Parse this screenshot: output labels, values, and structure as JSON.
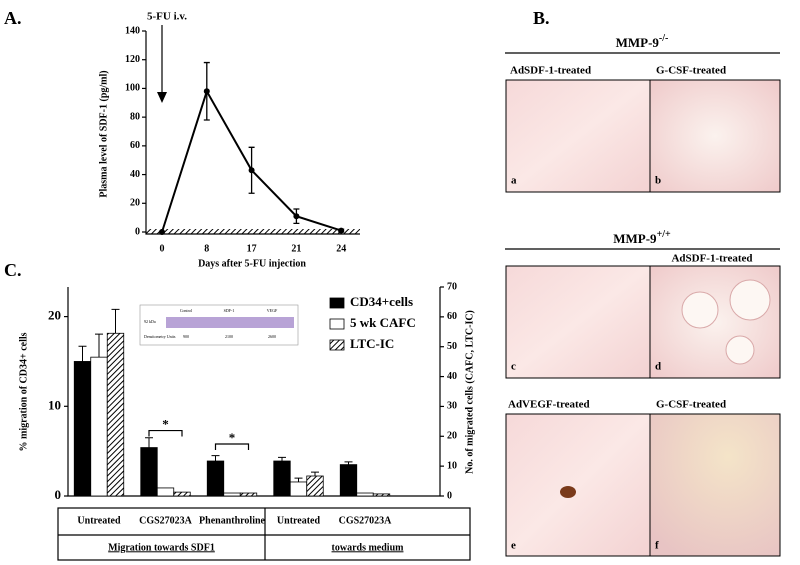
{
  "chart_data": [
    {
      "type": "line",
      "label": "A.",
      "annotation": "5-FU i.v.",
      "ylabel": "Plasma level of SDF-1 (pg/ml)",
      "xlabel": "Days after 5-FU injection",
      "categories": [
        "0",
        "8",
        "17",
        "21",
        "24"
      ],
      "values": [
        0,
        98,
        43,
        11,
        1
      ],
      "errors": [
        0,
        20,
        16,
        5,
        1
      ],
      "color": "#000000",
      "ylim": [
        0,
        140
      ],
      "yticks": [
        0,
        20,
        40,
        60,
        80,
        100,
        120,
        140
      ]
    },
    {
      "type": "bar",
      "label": "C.",
      "ylabel": "% migration of CD34+ cells",
      "y2label": "No. of migrated cells (CAFC, LTC-IC)",
      "categories": [
        "Untreated",
        "CGS27023A",
        "Phenanthroline",
        "Untreated",
        "CGS27023A"
      ],
      "groups": [
        "Migration towards SDF1",
        "towards medium"
      ],
      "series": [
        {
          "name": "CD34+cells",
          "color": "#000000",
          "values": [
            15.0,
            5.4,
            3.9,
            3.9,
            3.5
          ],
          "errors": [
            1.7,
            1.1,
            0.6,
            0.4,
            0.3
          ]
        },
        {
          "name": "5 wk CAFC",
          "color": "#ffffff",
          "axis": "y2",
          "values": [
            46.5,
            2.7,
            1,
            4.7,
            1
          ],
          "errors": [
            7.7,
            null,
            null,
            1.3,
            null
          ]
        },
        {
          "name": "LTC-IC",
          "color": "#ffffff",
          "hatch": true,
          "axis": "y2",
          "values": [
            54.5,
            1.3,
            1,
            6.7,
            0.7
          ],
          "errors": [
            8,
            null,
            null,
            1.3,
            null
          ]
        }
      ],
      "annotations": [
        "*",
        "*"
      ],
      "inset": {
        "columns": [
          "Control",
          "SDF-1",
          "VEGF"
        ],
        "row_label": "92 kDa",
        "densitometry_label": "Densitometry Units",
        "densitometry": [
          900,
          2100,
          2600
        ]
      },
      "ylim": [
        0,
        23.3
      ],
      "yticks": [
        0,
        10,
        20
      ],
      "y2lim": [
        0,
        70
      ],
      "y2ticks": [
        0,
        10,
        20,
        30,
        40,
        50,
        60,
        70
      ]
    }
  ],
  "panel_b": {
    "label": "B.",
    "knockout": {
      "title": "MMP-9",
      "sup": "-/-",
      "labels": [
        "AdSDF-1-treated",
        "G-CSF-treated"
      ],
      "letters": [
        "a",
        "b"
      ]
    },
    "wildtype": {
      "title": "MMP-9",
      "sup": "+/+",
      "label": "AdSDF-1-treated",
      "letters": [
        "c",
        "d"
      ]
    },
    "bottom": {
      "labels": [
        "AdVEGF-treated",
        "G-CSF-treated"
      ],
      "letters": [
        "e",
        "f"
      ]
    }
  }
}
